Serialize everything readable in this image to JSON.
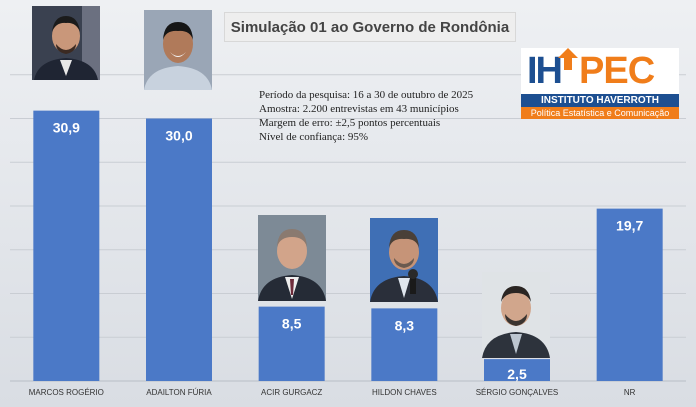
{
  "chart_data": {
    "type": "bar",
    "title": "Simulação 01 ao Governo de Rondônia",
    "categories": [
      "MARCOS ROGÉRIO",
      "ADAILTON FÚRIA",
      "ACIR GURGACZ",
      "HILDON CHAVES",
      "SÉRGIO GONÇALVES",
      "NR"
    ],
    "value_labels": [
      "30,9",
      "30,0",
      "8,5",
      "8,3",
      "2,5",
      "19,7"
    ],
    "values": [
      30.9,
      30.0,
      8.5,
      8.3,
      2.5,
      19.7
    ],
    "ylim": [
      0,
      35
    ],
    "grid": true,
    "bar_color": "#4b79c7"
  },
  "info": {
    "line1": "Período da pesquisa: 16 a 30 de outubro de 2025",
    "line2": "Amostra: 2.200 entrevistas em 43 municípios",
    "line3": "Margem de erro: ±2,5 pontos percentuais",
    "line4": "Nível de confiança: 95%"
  },
  "logo": {
    "mark_left": "IH",
    "mark_right": "PEC",
    "name": "INSTITUTO HAVERROTH",
    "tagline": "Política Estatística e Comunicação"
  }
}
